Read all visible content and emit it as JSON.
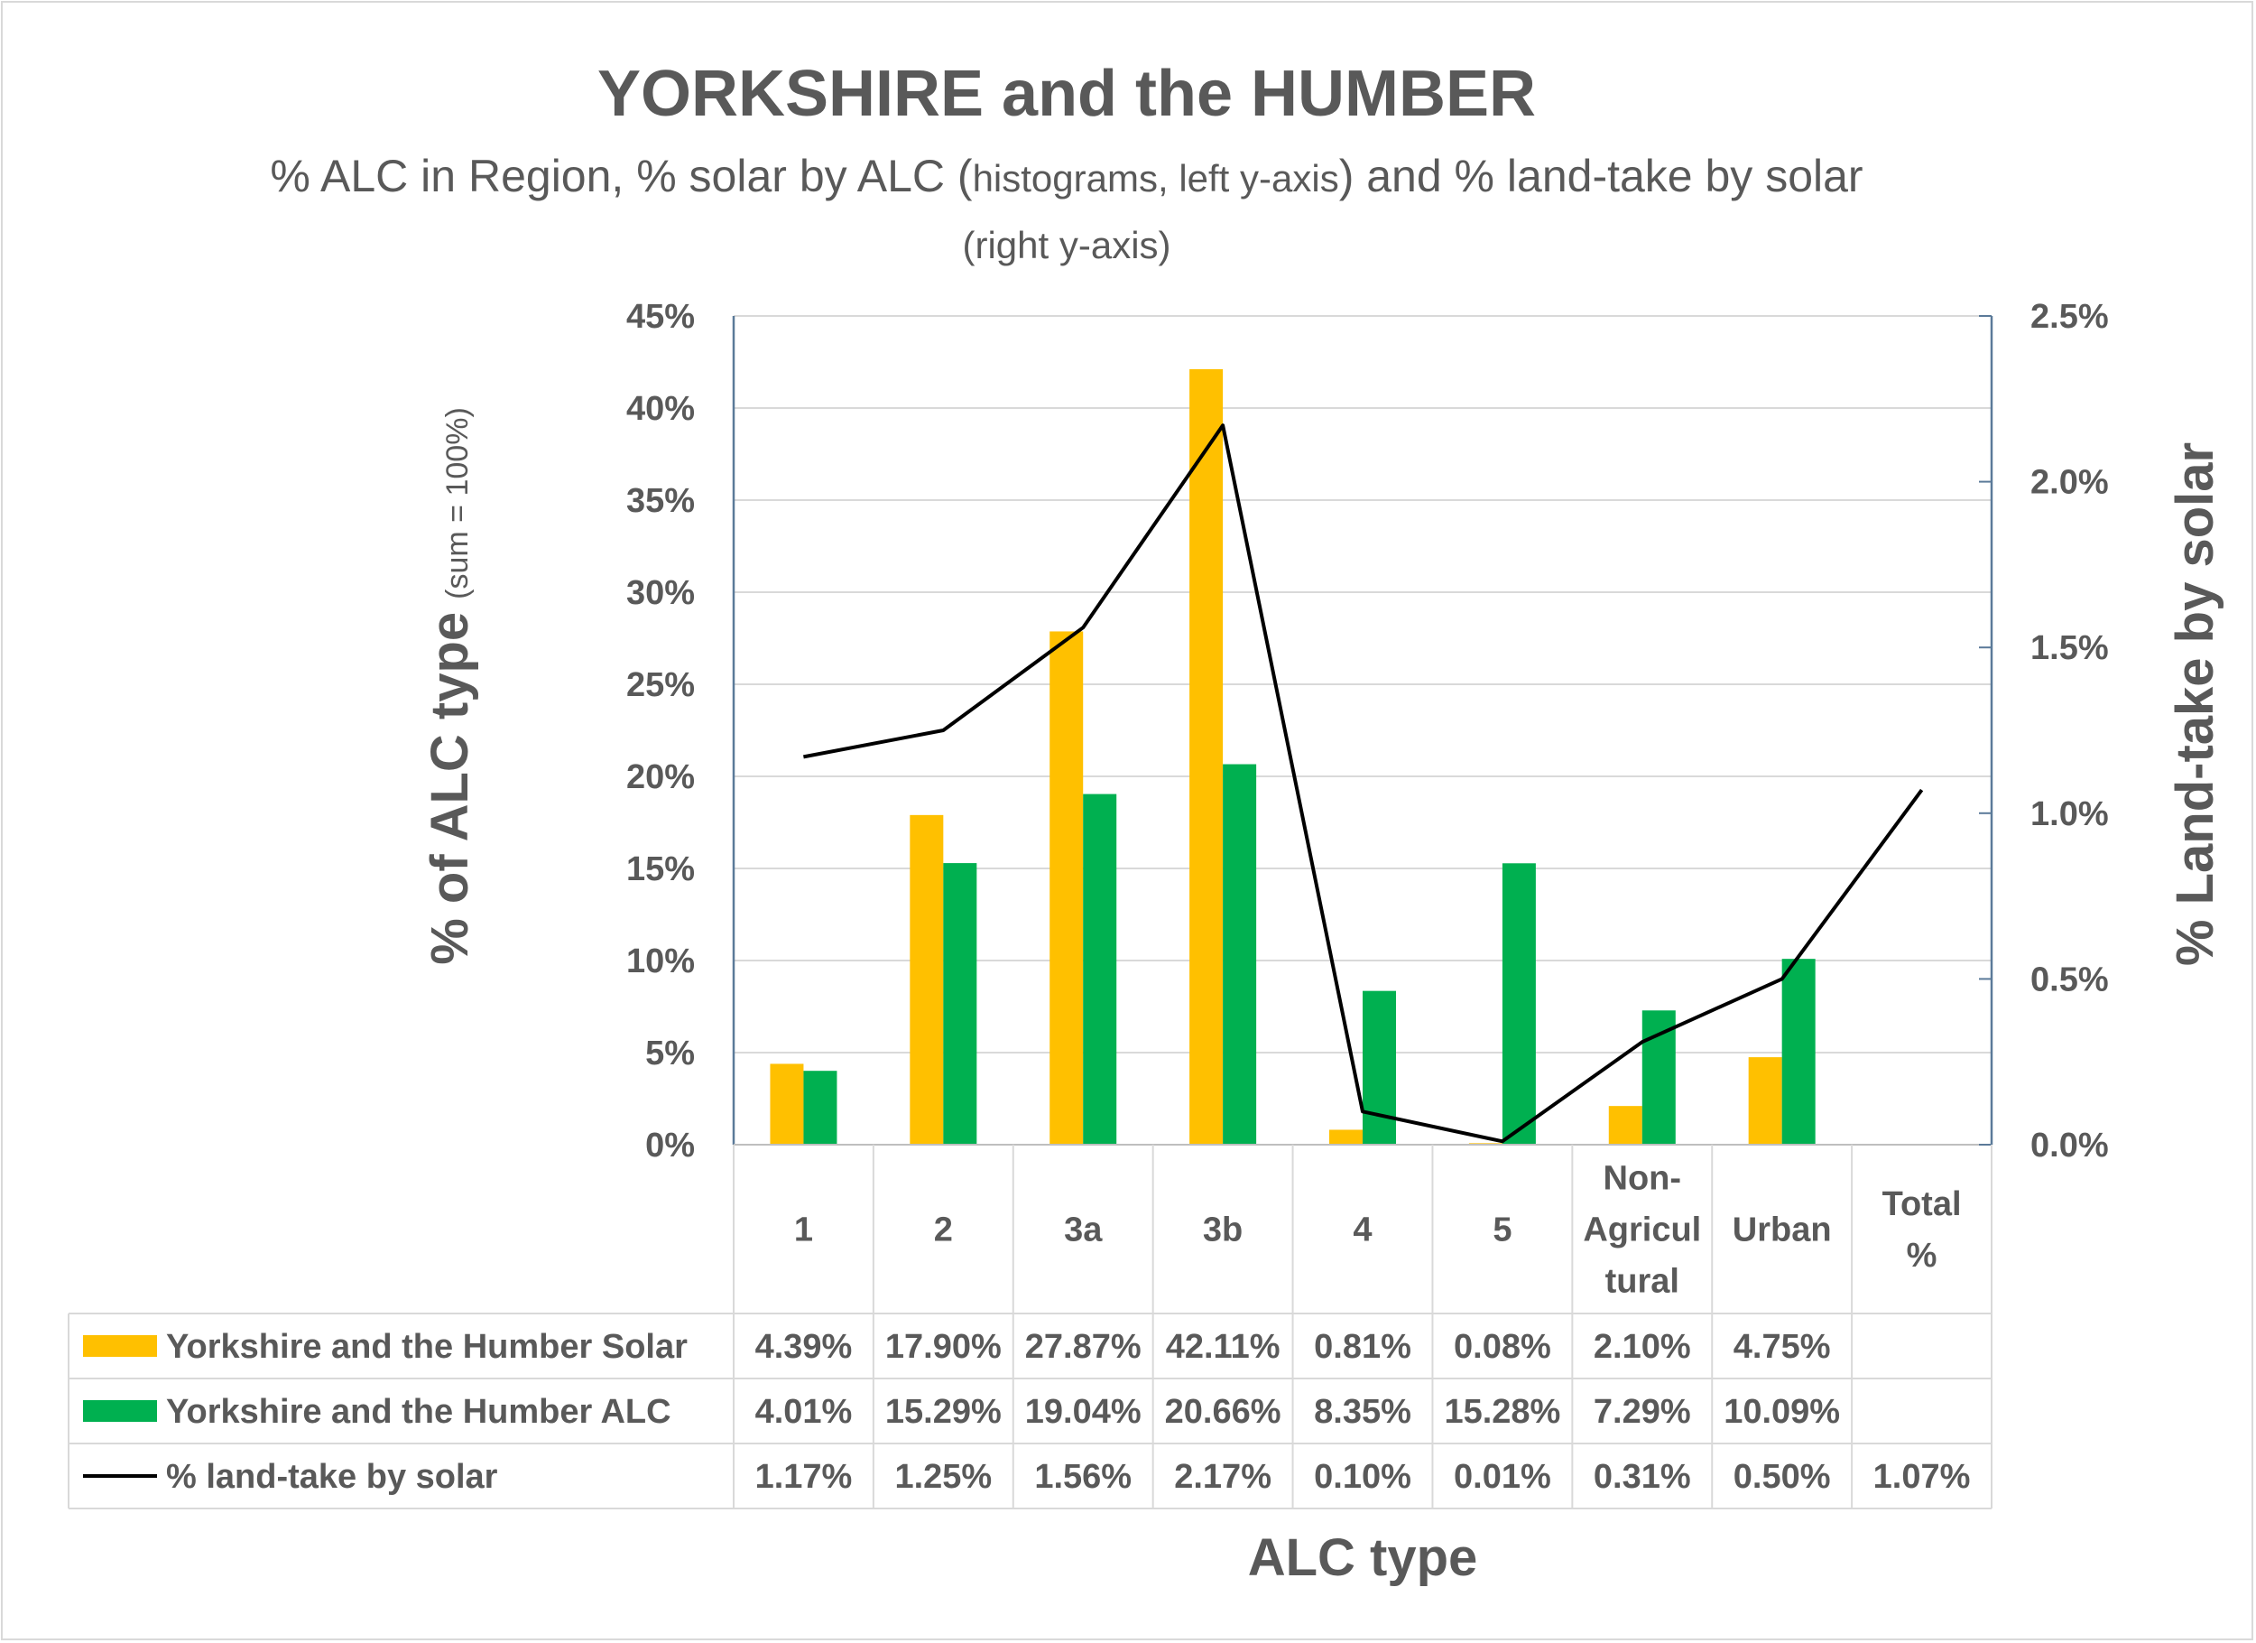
{
  "chart_data": {
    "type": "bar",
    "title": "YORKSHIRE and the HUMBER",
    "subtitle_line1_a": "% ALC in Region, % solar by ALC (",
    "subtitle_line1_b": "histograms, left y-axis",
    "subtitle_line1_c": ") and % land-take by solar",
    "subtitle_line2": "(right y-axis)",
    "xlabel": "ALC type",
    "ylabel_main": "% of ALC type",
    "ylabel_note": "(sum = 100%)",
    "y2label": "% Land-take by solar",
    "ylim": [
      0,
      45
    ],
    "y2lim": [
      0,
      2.5
    ],
    "y_ticks": [
      "0%",
      "5%",
      "10%",
      "15%",
      "20%",
      "25%",
      "30%",
      "35%",
      "40%",
      "45%"
    ],
    "y2_ticks": [
      "0.0%",
      "0.5%",
      "1.0%",
      "1.5%",
      "2.0%",
      "2.5%"
    ],
    "grid": true,
    "categories": [
      {
        "lines": [
          "1"
        ]
      },
      {
        "lines": [
          "2"
        ]
      },
      {
        "lines": [
          "3a"
        ]
      },
      {
        "lines": [
          "3b"
        ]
      },
      {
        "lines": [
          "4"
        ]
      },
      {
        "lines": [
          "5"
        ]
      },
      {
        "lines": [
          "Non-",
          "Agricul",
          "tural"
        ]
      },
      {
        "lines": [
          "Urban"
        ]
      },
      {
        "lines": [
          "Total",
          "%"
        ]
      }
    ],
    "series": [
      {
        "name": "Yorkshire and the Humber Solar",
        "kind": "bar",
        "axis": "left",
        "color": "#ffc000",
        "values": [
          4.39,
          17.9,
          27.87,
          42.11,
          0.81,
          0.08,
          2.1,
          4.75,
          null
        ],
        "labels": [
          "4.39%",
          "17.90%",
          "27.87%",
          "42.11%",
          "0.81%",
          "0.08%",
          "2.10%",
          "4.75%",
          ""
        ]
      },
      {
        "name": "Yorkshire and the Humber ALC",
        "kind": "bar",
        "axis": "left",
        "color": "#00b050",
        "values": [
          4.01,
          15.29,
          19.04,
          20.66,
          8.35,
          15.28,
          7.29,
          10.09,
          null
        ],
        "labels": [
          "4.01%",
          "15.29%",
          "19.04%",
          "20.66%",
          "8.35%",
          "15.28%",
          "7.29%",
          "10.09%",
          ""
        ]
      },
      {
        "name": "% land-take by solar",
        "kind": "line",
        "axis": "right",
        "color": "#000000",
        "values": [
          1.17,
          1.25,
          1.56,
          2.17,
          0.1,
          0.01,
          0.31,
          0.5,
          1.07
        ],
        "labels": [
          "1.17%",
          "1.25%",
          "1.56%",
          "2.17%",
          "0.10%",
          "0.01%",
          "0.31%",
          "0.50%",
          "1.07%"
        ]
      }
    ]
  }
}
